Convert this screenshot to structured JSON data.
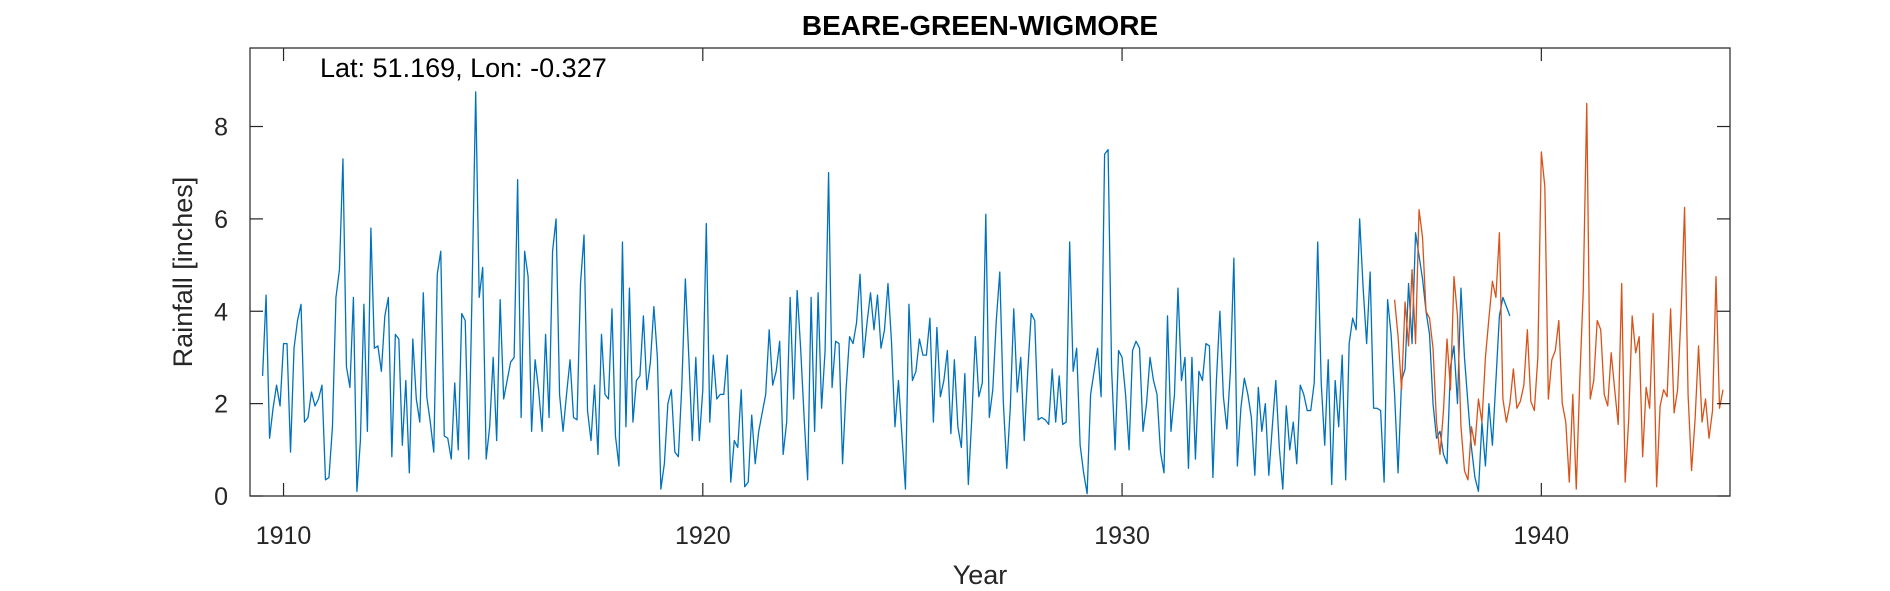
{
  "chart_data": {
    "type": "line",
    "title": "BEARE-GREEN-WIGMORE",
    "annotation": "Lat: 51.169, Lon: -0.327",
    "xlabel": "Year",
    "ylabel": "Rainfall [inches]",
    "xlim": [
      1909.2,
      1944.5
    ],
    "ylim": [
      0,
      9.7
    ],
    "xticks": [
      1910,
      1920,
      1930,
      1940
    ],
    "yticks": [
      0,
      2,
      4,
      6,
      8
    ],
    "grid": false,
    "legend": "none",
    "series": [
      {
        "color": "#0072BD",
        "x_start": 1909.5,
        "step": 0.0833333,
        "values": [
          2.6,
          4.35,
          1.25,
          1.9,
          2.4,
          1.95,
          3.3,
          3.3,
          0.95,
          3.2,
          3.8,
          4.15,
          1.6,
          1.7,
          2.25,
          1.95,
          2.1,
          2.4,
          0.35,
          0.4,
          1.5,
          4.3,
          4.9,
          7.3,
          2.8,
          2.35,
          4.3,
          0.1,
          1.2,
          4.15,
          1.4,
          5.8,
          3.2,
          3.25,
          2.7,
          3.9,
          4.3,
          0.85,
          3.5,
          3.4,
          1.1,
          2.5,
          0.5,
          3.4,
          2.1,
          1.6,
          4.4,
          2.15,
          1.6,
          0.95,
          4.8,
          5.3,
          1.3,
          1.25,
          0.8,
          2.45,
          1.0,
          3.95,
          3.8,
          0.8,
          4.6,
          8.75,
          4.3,
          4.95,
          0.8,
          1.5,
          3.0,
          1.2,
          4.25,
          2.1,
          2.5,
          2.9,
          3.0,
          6.85,
          1.7,
          5.3,
          4.75,
          1.4,
          2.95,
          2.3,
          1.4,
          3.5,
          1.7,
          5.3,
          6.0,
          2.2,
          1.4,
          2.2,
          2.95,
          1.7,
          1.65,
          4.6,
          5.65,
          1.85,
          1.2,
          2.4,
          0.9,
          3.5,
          2.2,
          2.1,
          4.05,
          1.3,
          0.65,
          5.5,
          1.5,
          4.5,
          1.6,
          2.5,
          2.6,
          3.9,
          2.3,
          2.9,
          4.1,
          3.0,
          0.15,
          0.7,
          2.0,
          2.3,
          0.95,
          0.85,
          2.4,
          4.7,
          3.0,
          1.2,
          3.0,
          1.2,
          2.3,
          5.9,
          1.6,
          3.05,
          2.1,
          2.2,
          2.2,
          3.05,
          0.3,
          1.2,
          1.05,
          2.3,
          0.2,
          0.3,
          1.75,
          0.7,
          1.4,
          1.8,
          2.2,
          3.6,
          2.4,
          2.7,
          3.35,
          0.9,
          1.6,
          4.3,
          2.1,
          4.45,
          3.2,
          1.7,
          0.35,
          4.3,
          1.4,
          4.4,
          1.9,
          3.15,
          7.0,
          2.35,
          3.35,
          3.3,
          0.7,
          2.3,
          3.45,
          3.3,
          3.75,
          4.8,
          3.0,
          3.75,
          4.4,
          3.6,
          4.35,
          3.2,
          3.6,
          4.6,
          3.35,
          1.5,
          2.5,
          1.3,
          0.15,
          4.15,
          2.5,
          2.7,
          3.4,
          3.05,
          3.05,
          3.85,
          1.6,
          3.65,
          2.15,
          2.5,
          3.15,
          1.35,
          2.95,
          1.5,
          1.05,
          2.65,
          0.25,
          1.7,
          3.45,
          2.15,
          2.45,
          6.1,
          1.7,
          2.3,
          3.8,
          4.85,
          2.05,
          0.6,
          1.9,
          4.05,
          2.25,
          3.0,
          1.2,
          2.7,
          3.95,
          3.8,
          1.65,
          1.7,
          1.65,
          1.55,
          2.75,
          1.6,
          2.6,
          1.55,
          1.6,
          5.5,
          2.7,
          3.2,
          1.1,
          0.5,
          0.05,
          2.2,
          2.7,
          3.2,
          2.15,
          7.4,
          7.5,
          2.75,
          1.0,
          3.15,
          3.0,
          2.2,
          1.0,
          3.15,
          3.35,
          3.2,
          1.4,
          2.0,
          3.0,
          2.5,
          2.2,
          0.95,
          0.5,
          3.9,
          1.4,
          2.2,
          4.5,
          2.5,
          3.0,
          0.6,
          3.0,
          0.8,
          2.7,
          2.5,
          3.3,
          3.25,
          0.4,
          2.5,
          4.0,
          2.15,
          1.45,
          2.7,
          5.15,
          0.65,
          1.9,
          2.55,
          2.2,
          1.7,
          0.45,
          2.35,
          1.4,
          2.0,
          0.45,
          1.5,
          2.5,
          1.05,
          0.15,
          1.95,
          1.0,
          1.6,
          0.7,
          2.4,
          2.2,
          1.85,
          1.85,
          2.45,
          5.5,
          2.45,
          1.1,
          2.95,
          0.25,
          2.5,
          1.5,
          3.05,
          0.35,
          3.3,
          3.85,
          3.6,
          6.0,
          4.5,
          3.3,
          4.85,
          1.9,
          1.9,
          1.85,
          0.3,
          4.25,
          3.5,
          2.2,
          0.5,
          2.5,
          2.75,
          4.6,
          3.3,
          5.7,
          5.2,
          4.7,
          4.0,
          3.5,
          2.0,
          1.25,
          1.4,
          0.9,
          0.7,
          2.8,
          3.25,
          2.0,
          4.5,
          3.0,
          2.0,
          1.05,
          0.4,
          0.1,
          1.6,
          0.65,
          2.0,
          1.1,
          2.5,
          3.9,
          4.3,
          4.1,
          3.9
        ]
      },
      {
        "color": "#D95319",
        "x_start": 1936.5,
        "step": 0.0833333,
        "values": [
          4.25,
          3.45,
          2.3,
          4.2,
          3.25,
          4.9,
          3.3,
          6.2,
          5.6,
          4.0,
          3.85,
          3.2,
          1.6,
          0.9,
          1.85,
          3.4,
          2.3,
          4.75,
          3.9,
          1.5,
          0.55,
          0.35,
          1.5,
          1.1,
          2.1,
          1.6,
          3.0,
          3.85,
          4.65,
          4.3,
          5.7,
          2.1,
          1.6,
          2.0,
          2.75,
          1.9,
          2.05,
          2.4,
          3.6,
          2.05,
          1.85,
          3.0,
          7.45,
          6.7,
          2.1,
          2.95,
          3.15,
          3.8,
          2.0,
          1.6,
          0.3,
          2.2,
          0.15,
          2.5,
          4.45,
          8.5,
          2.1,
          2.5,
          3.8,
          3.6,
          2.2,
          1.95,
          3.1,
          2.3,
          1.55,
          4.6,
          0.3,
          1.65,
          3.9,
          3.1,
          3.45,
          0.85,
          2.35,
          1.9,
          3.95,
          0.2,
          1.95,
          2.3,
          2.15,
          4.05,
          1.8,
          2.3,
          3.95,
          6.25,
          2.2,
          0.55,
          1.65,
          3.25,
          1.6,
          2.1,
          1.25,
          1.85,
          4.75,
          1.9,
          2.3
        ]
      }
    ]
  }
}
